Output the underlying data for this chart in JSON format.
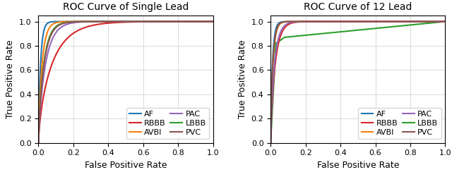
{
  "title1": "ROC Curve of Single Lead",
  "title2": "ROC Curve of 12 Lead",
  "xlabel": "False Positive Rate",
  "ylabel": "True Positive Rate",
  "colors": {
    "AF": "#1f77b4",
    "AVBI": "#ff7f0e",
    "LBBB": "#2ca02c",
    "RBBB": "#d62728",
    "PAC": "#9467bd",
    "PVC": "#8c564b"
  },
  "tick_fontsize": 8,
  "label_fontsize": 9,
  "title_fontsize": 10,
  "legend_fontsize": 8,
  "linewidth": 1.5
}
